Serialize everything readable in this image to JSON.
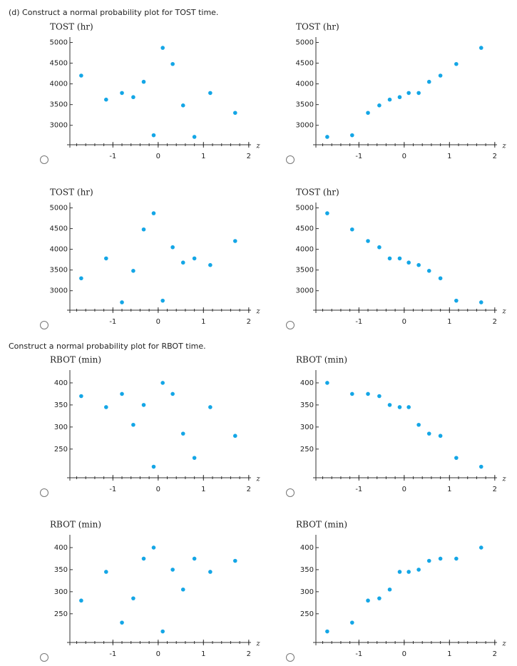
{
  "prompts": [
    "(d) Construct a normal probability plot for TOST time.",
    "Construct a normal probability plot for RBOT time."
  ],
  "chart_data": [
    {
      "type": "scatter",
      "y_label": "TOST (hr)",
      "x_label": "z",
      "color": "#14a6e6",
      "x": [
        -1.7,
        -1.15,
        -0.8,
        -0.55,
        -0.32,
        -0.1,
        0.1,
        0.32,
        0.55,
        0.8,
        1.15,
        1.7
      ],
      "values": [
        4200,
        3620,
        3780,
        3680,
        4050,
        2760,
        4870,
        4480,
        3480,
        2720,
        3780,
        3300
      ],
      "xlim": [
        -1.95,
        2.05
      ],
      "xticks": [
        -1,
        0,
        1,
        2
      ],
      "ylim": [
        2530,
        5130
      ],
      "yticks": [
        3000,
        3500,
        4000,
        4500,
        5000
      ]
    },
    {
      "type": "scatter",
      "y_label": "TOST (hr)",
      "x_label": "z",
      "color": "#14a6e6",
      "x": [
        -1.7,
        -1.15,
        -0.8,
        -0.55,
        -0.32,
        -0.1,
        0.1,
        0.32,
        0.55,
        0.8,
        1.15,
        1.7
      ],
      "values": [
        2720,
        2760,
        3300,
        3480,
        3620,
        3680,
        3780,
        3780,
        4050,
        4200,
        4480,
        4870
      ],
      "xlim": [
        -1.95,
        2.05
      ],
      "xticks": [
        -1,
        0,
        1,
        2
      ],
      "ylim": [
        2530,
        5130
      ],
      "yticks": [
        3000,
        3500,
        4000,
        4500,
        5000
      ]
    },
    {
      "type": "scatter",
      "y_label": "TOST (hr)",
      "x_label": "z",
      "color": "#14a6e6",
      "x": [
        -1.7,
        -1.15,
        -0.8,
        -0.55,
        -0.32,
        -0.1,
        0.1,
        0.32,
        0.55,
        0.8,
        1.15,
        1.7
      ],
      "values": [
        3300,
        3780,
        2720,
        3480,
        4480,
        4870,
        2760,
        4050,
        3680,
        3780,
        3620,
        4200
      ],
      "xlim": [
        -1.95,
        2.05
      ],
      "xticks": [
        -1,
        0,
        1,
        2
      ],
      "ylim": [
        2530,
        5130
      ],
      "yticks": [
        3000,
        3500,
        4000,
        4500,
        5000
      ]
    },
    {
      "type": "scatter",
      "y_label": "TOST (hr)",
      "x_label": "z",
      "color": "#14a6e6",
      "x": [
        -1.7,
        -1.15,
        -0.8,
        -0.55,
        -0.32,
        -0.1,
        0.1,
        0.32,
        0.55,
        0.8,
        1.15,
        1.7
      ],
      "values": [
        4870,
        4480,
        4200,
        4050,
        3780,
        3780,
        3680,
        3620,
        3480,
        3300,
        2760,
        2720
      ],
      "xlim": [
        -1.95,
        2.05
      ],
      "xticks": [
        -1,
        0,
        1,
        2
      ],
      "ylim": [
        2530,
        5130
      ],
      "yticks": [
        3000,
        3500,
        4000,
        4500,
        5000
      ]
    },
    {
      "type": "scatter",
      "y_label": "RBOT (min)",
      "x_label": "z",
      "color": "#14a6e6",
      "x": [
        -1.7,
        -1.15,
        -0.8,
        -0.55,
        -0.32,
        -0.1,
        0.1,
        0.32,
        0.55,
        0.8,
        1.15,
        1.7
      ],
      "values": [
        370,
        345,
        375,
        305,
        350,
        210,
        400,
        375,
        285,
        230,
        345,
        280
      ],
      "xlim": [
        -1.95,
        2.05
      ],
      "xticks": [
        -1,
        0,
        1,
        2
      ],
      "ylim": [
        185,
        429
      ],
      "yticks": [
        250,
        300,
        350,
        400
      ]
    },
    {
      "type": "scatter",
      "y_label": "RBOT (min)",
      "x_label": "z",
      "color": "#14a6e6",
      "x": [
        -1.7,
        -1.15,
        -0.8,
        -0.55,
        -0.32,
        -0.1,
        0.1,
        0.32,
        0.55,
        0.8,
        1.15,
        1.7
      ],
      "values": [
        400,
        375,
        375,
        370,
        350,
        345,
        345,
        305,
        285,
        280,
        230,
        210
      ],
      "xlim": [
        -1.95,
        2.05
      ],
      "xticks": [
        -1,
        0,
        1,
        2
      ],
      "ylim": [
        185,
        429
      ],
      "yticks": [
        250,
        300,
        350,
        400
      ]
    },
    {
      "type": "scatter",
      "y_label": "RBOT (min)",
      "x_label": "z",
      "color": "#14a6e6",
      "x": [
        -1.7,
        -1.15,
        -0.8,
        -0.55,
        -0.32,
        -0.1,
        0.1,
        0.32,
        0.55,
        0.8,
        1.15,
        1.7
      ],
      "values": [
        280,
        345,
        230,
        285,
        375,
        400,
        210,
        350,
        305,
        375,
        345,
        370
      ],
      "xlim": [
        -1.95,
        2.05
      ],
      "xticks": [
        -1,
        0,
        1,
        2
      ],
      "ylim": [
        185,
        429
      ],
      "yticks": [
        250,
        300,
        350,
        400
      ]
    },
    {
      "type": "scatter",
      "y_label": "RBOT (min)",
      "x_label": "z",
      "color": "#14a6e6",
      "x": [
        -1.7,
        -1.15,
        -0.8,
        -0.55,
        -0.32,
        -0.1,
        0.1,
        0.32,
        0.55,
        0.8,
        1.15,
        1.7
      ],
      "values": [
        210,
        230,
        280,
        285,
        305,
        345,
        345,
        350,
        370,
        375,
        375,
        400
      ],
      "xlim": [
        -1.95,
        2.05
      ],
      "xticks": [
        -1,
        0,
        1,
        2
      ],
      "ylim": [
        185,
        429
      ],
      "yticks": [
        250,
        300,
        350,
        400
      ]
    }
  ]
}
